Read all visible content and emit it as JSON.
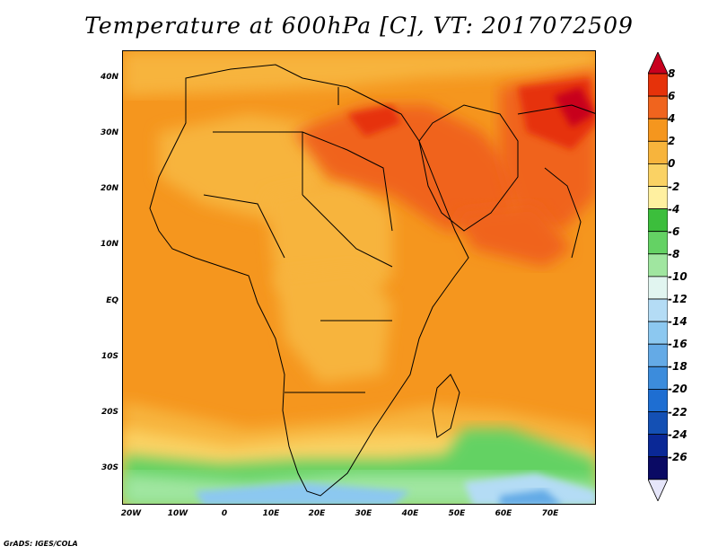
{
  "title": "Temperature at 600hPa [C], VT: 2017072509",
  "credit": "GrADS: IGES/COLA",
  "lat_labels": [
    "40N",
    "30N",
    "20N",
    "10N",
    "EQ",
    "10S",
    "20S",
    "30S"
  ],
  "lon_labels": [
    "20W",
    "10W",
    "0",
    "10E",
    "20E",
    "30E",
    "40E",
    "50E",
    "60E",
    "70E"
  ],
  "colorbar": {
    "labels": [
      "8",
      "6",
      "4",
      "2",
      "0",
      "-2",
      "-4",
      "-6",
      "-8",
      "-10",
      "-12",
      "-14",
      "-16",
      "-18",
      "-20",
      "-22",
      "-24",
      "-26"
    ],
    "colors": [
      "#c8001e",
      "#e6320a",
      "#f0641e",
      "#f5961e",
      "#f7b43c",
      "#fad264",
      "#fff0a0",
      "#3cbe3c",
      "#64d264",
      "#a0e6a0",
      "#e1f5f0",
      "#b4dcf5",
      "#8cc8f0",
      "#64aae6",
      "#3c8cdc",
      "#1e6ed2",
      "#1450b4",
      "#0a2896",
      "#0a0a64",
      "#e6e6fa"
    ]
  }
}
